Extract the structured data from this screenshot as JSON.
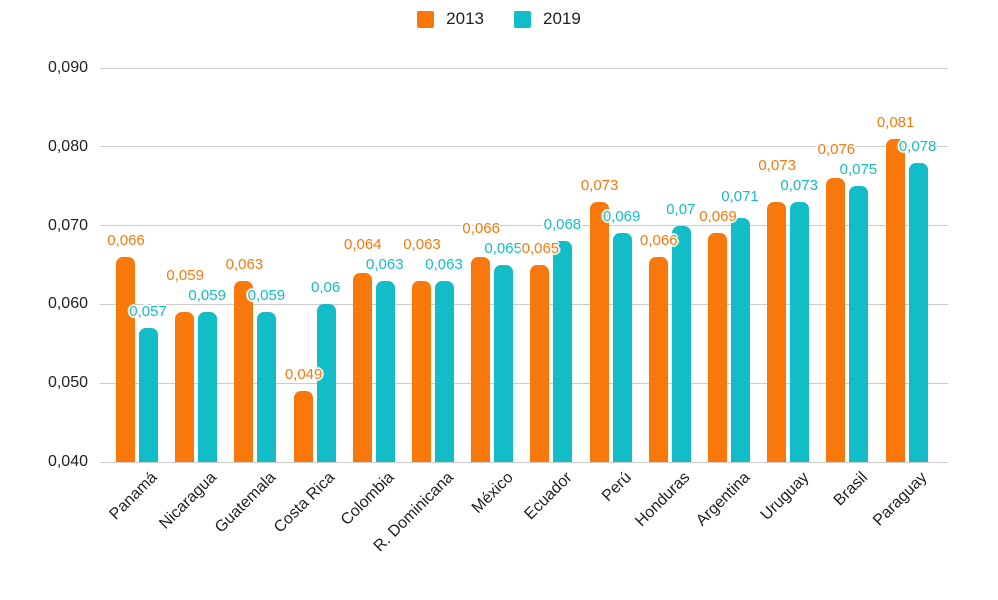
{
  "chart_data": {
    "type": "bar",
    "title": "",
    "xlabel": "",
    "ylabel": "",
    "categories": [
      "Panamá",
      "Nicaragua",
      "Guatemala",
      "Costa Rica",
      "Colombia",
      "R. Dominicana",
      "México",
      "Ecuador",
      "Perú",
      "Honduras",
      "Argentina",
      "Uruguay",
      "Brasil",
      "Paraguay"
    ],
    "series": [
      {
        "name": "2013",
        "color": "#F8780C",
        "values": [
          0.066,
          0.059,
          0.063,
          0.049,
          0.064,
          0.063,
          0.066,
          0.065,
          0.073,
          0.066,
          0.069,
          0.073,
          0.076,
          0.081
        ],
        "value_labels": [
          "0,066",
          "0,059",
          "0,063",
          "0,049",
          "0,064",
          "0,063",
          "0,066",
          "0,065",
          "0,073",
          "0,066",
          "0,069",
          "0,073",
          "0,076",
          "0,081"
        ]
      },
      {
        "name": "2019",
        "color": "#12BDC7",
        "values": [
          0.057,
          0.059,
          0.059,
          0.06,
          0.063,
          0.063,
          0.065,
          0.068,
          0.069,
          0.07,
          0.071,
          0.073,
          0.075,
          0.078
        ],
        "value_labels": [
          "0,057",
          "0,059",
          "0,059",
          "0,06",
          "0,063",
          "0,063",
          "0,065",
          "0,068",
          "0,069",
          "0,07",
          "0,071",
          "0,073",
          "0,075",
          "0,078"
        ]
      }
    ],
    "y_axis": {
      "min": 0.04,
      "max": 0.09,
      "step": 0.01,
      "tick_labels": [
        "0,040",
        "0,050",
        "0,060",
        "0,070",
        "0,080",
        "0,090"
      ]
    },
    "grid": true,
    "legend_position": "top-center",
    "bar_style": "rounded-top",
    "value_labels_shown": true
  },
  "colors": {
    "series_2013": "#F8780C",
    "series_2019": "#12BDC7",
    "gridline": "#CCCCCC",
    "axis_text": "#1F1F1F",
    "background": "#FFFFFF"
  }
}
